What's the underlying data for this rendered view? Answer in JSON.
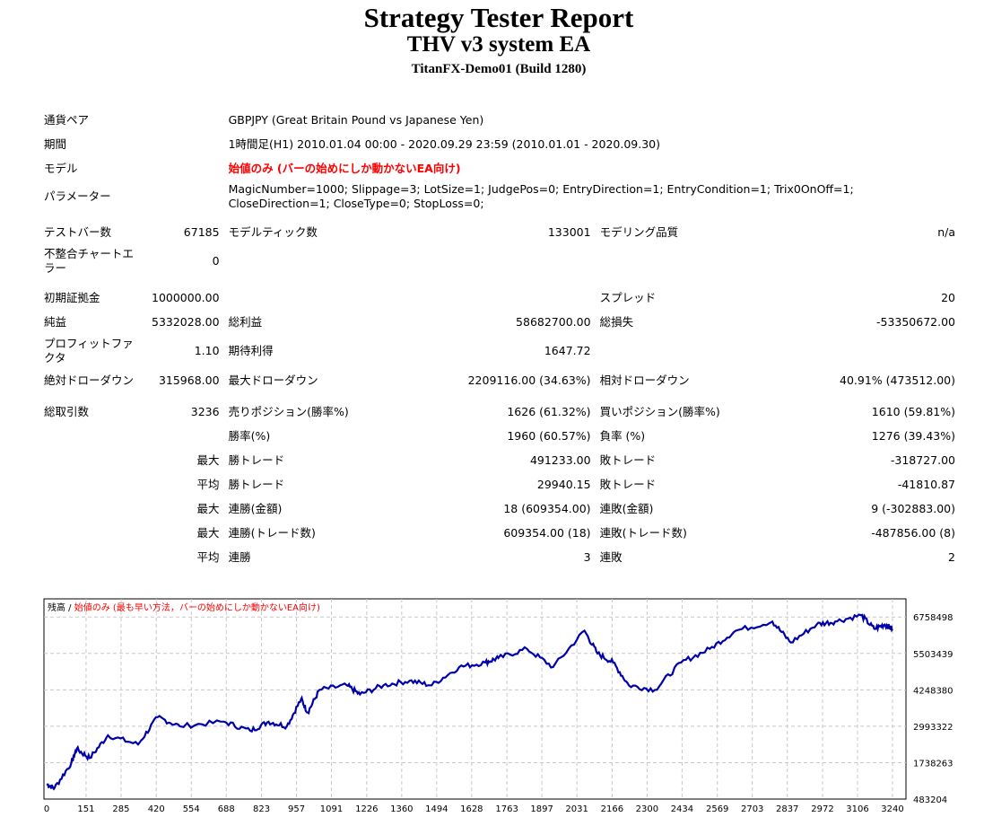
{
  "header": {
    "title": "Strategy Tester Report",
    "ea": "THV v3 system EA",
    "server": "TitanFX-Demo01 (Build 1280)"
  },
  "info": {
    "symbol_label": "通貨ペア",
    "symbol": "GBPJPY (Great Britain Pound vs Japanese Yen)",
    "period_label": "期間",
    "period": "1時間足(H1) 2010.01.04 00:00 - 2020.09.29 23:59 (2010.01.01 - 2020.09.30)",
    "model_label": "モデル",
    "model": "始値のみ (バーの始めにしか動かないEA向け)",
    "params_label": "パラメーター",
    "params": "MagicNumber=1000; Slippage=3; LotSize=1; JudgePos=0; EntryDirection=1; EntryCondition=1; Trix0OnOff=1; CloseDirection=1; CloseType=0; StopLoss=0;",
    "bars_label": "テストバー数",
    "bars": "67185",
    "ticks_label": "モデルティック数",
    "ticks": "133001",
    "quality_label": "モデリング品質",
    "quality": "n/a",
    "mismatch_label": "不整合チャートエラー",
    "mismatch": "0"
  },
  "stats": {
    "deposit_label": "初期証拠金",
    "deposit": "1000000.00",
    "spread_label": "スプレッド",
    "spread": "20",
    "net_label": "純益",
    "net": "5332028.00",
    "gross_profit_label": "総利益",
    "gross_profit": "58682700.00",
    "gross_loss_label": "総損失",
    "gross_loss": "-53350672.00",
    "pf_label": "プロフィットファクタ",
    "pf": "1.10",
    "expected_label": "期待利得",
    "expected": "1647.72",
    "abs_dd_label": "絶対ドローダウン",
    "abs_dd": "315968.00",
    "max_dd_label": "最大ドローダウン",
    "max_dd": "2209116.00 (34.63%)",
    "rel_dd_label": "相対ドローダウン",
    "rel_dd": "40.91% (473512.00)",
    "trades_label": "総取引数",
    "trades": "3236",
    "short_label": "売りポジション(勝率%)",
    "short": "1626 (61.32%)",
    "long_label": "買いポジション(勝率%)",
    "long": "1610 (59.81%)",
    "win_label": "勝率(%)",
    "win": "1960 (60.57%)",
    "loss_label": "負率 (%)",
    "loss": "1276 (39.43%)",
    "max_label": "最大",
    "avg_label": "平均",
    "max_win_label": "勝トレード",
    "max_win": "491233.00",
    "max_loss_label": "敗トレード",
    "max_loss": "-318727.00",
    "avg_win_label": "勝トレード",
    "avg_win": "29940.15",
    "avg_loss_label": "敗トレード",
    "avg_loss": "-41810.87",
    "cons_win_amt_label": "連勝(金額)",
    "cons_win_amt": "18 (609354.00)",
    "cons_loss_amt_label": "連敗(金額)",
    "cons_loss_amt": "9 (-302883.00)",
    "cons_win_cnt_label": "連勝(トレード数)",
    "cons_win_cnt": "609354.00 (18)",
    "cons_loss_cnt_label": "連敗(トレード数)",
    "cons_loss_cnt": "-487856.00 (8)",
    "avg_cons_win_label": "連勝",
    "avg_cons_win": "3",
    "avg_cons_loss_label": "連敗",
    "avg_cons_loss": "2"
  },
  "chart_data": {
    "type": "line",
    "legend_balance": "残高 / ",
    "legend_model": "始値のみ (最も早い方法，バーの始めにしか動かないEA向け)",
    "xticks": [
      "0",
      "151",
      "285",
      "420",
      "554",
      "688",
      "823",
      "957",
      "1091",
      "1226",
      "1360",
      "1494",
      "1628",
      "1763",
      "1897",
      "2031",
      "2166",
      "2300",
      "2434",
      "2569",
      "2703",
      "2837",
      "2972",
      "3106",
      "3240"
    ],
    "yticks": [
      "6758498",
      "5503439",
      "4248380",
      "2993322",
      "1738263",
      "483204"
    ],
    "ylim": [
      483204,
      7385000
    ],
    "xlim": [
      0,
      3250
    ],
    "colors": {
      "line": "#0000aa",
      "legend_red": "#ff0000"
    },
    "x": [
      0,
      30,
      95,
      115,
      165,
      235,
      350,
      425,
      510,
      680,
      780,
      850,
      920,
      975,
      1000,
      1045,
      1150,
      1200,
      1290,
      1390,
      1475,
      1580,
      1680,
      1730,
      1840,
      1940,
      2060,
      2110,
      2170,
      2230,
      2330,
      2430,
      2540,
      2640,
      2780,
      2850,
      2950,
      3020,
      3120,
      3170,
      3210,
      3240
    ],
    "values": [
      1000000,
      860000,
      1738000,
      2209000,
      1895000,
      2680000,
      2366000,
      3307000,
      2993000,
      3150000,
      2836000,
      3150000,
      2993000,
      3934000,
      3464000,
      4248000,
      4405000,
      4091000,
      4405000,
      4562000,
      4405000,
      5033000,
      5190000,
      5346000,
      5660000,
      5033000,
      6288000,
      5500000,
      5190000,
      4405000,
      4248000,
      5190000,
      5660000,
      6288000,
      6601000,
      5880000,
      6507000,
      6601000,
      6821000,
      6350000,
      6500000,
      6350000
    ]
  }
}
